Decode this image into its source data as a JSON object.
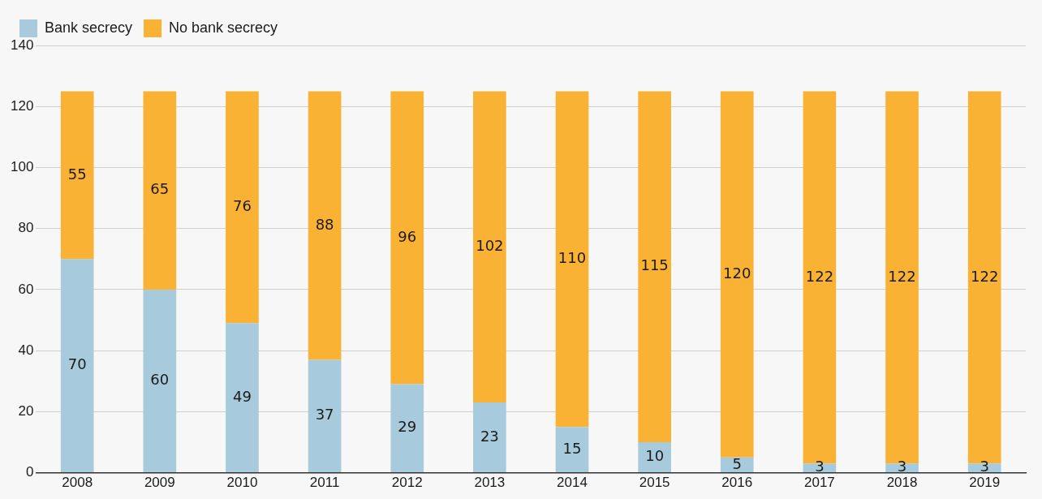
{
  "chart_data": {
    "type": "bar",
    "stacked": true,
    "data_labels": true,
    "grid": "y",
    "legend": "top left",
    "categories": [
      "2008",
      "2009",
      "2010",
      "2011",
      "2012",
      "2013",
      "2014",
      "2015",
      "2016",
      "2017",
      "2018",
      "2019"
    ],
    "series": [
      {
        "name": "Bank secrecy",
        "color": "#a7cbdc",
        "values": [
          70,
          60,
          49,
          37,
          29,
          23,
          15,
          10,
          5,
          3,
          3,
          3
        ]
      },
      {
        "name": "No bank secrecy",
        "color": "#f9b233",
        "values": [
          55,
          65,
          76,
          88,
          96,
          102,
          110,
          115,
          120,
          122,
          122,
          122
        ]
      }
    ],
    "ylim": [
      0,
      140
    ],
    "yticks": [
      0,
      20,
      40,
      60,
      80,
      100,
      120,
      140
    ]
  }
}
